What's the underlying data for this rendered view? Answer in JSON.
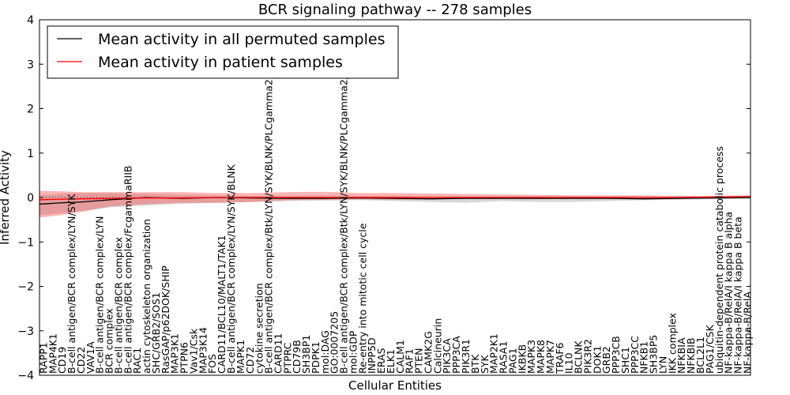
{
  "chart_data": {
    "type": "line",
    "title": "BCR signaling pathway -- 278 samples",
    "xlabel": "Cellular Entities",
    "ylabel": "Inferred Activity",
    "ylim": [
      -4,
      4
    ],
    "yticks": [
      -4,
      -3,
      -2,
      -1,
      0,
      1,
      2,
      3,
      4
    ],
    "ytick_labels": [
      "−4",
      "−3",
      "−2",
      "−1",
      "0",
      "1",
      "2",
      "3",
      "4"
    ],
    "legend": {
      "position": "top-left",
      "entries": [
        {
          "label": "Mean activity in all permuted samples",
          "color": "#000000"
        },
        {
          "label": "Mean activity in patient samples",
          "color": "#ff0000"
        }
      ]
    },
    "categories": [
      "RAPP1",
      "MAP4K1",
      "CD19",
      "B-cell antigen/BCR complex/LYN/SYK",
      "CD22",
      "VAV1A",
      "B-cell antigen/BCR complex/LYN",
      "BCR complex",
      "B-cell antigen/BCR complex",
      "B-cell antigen/BCR complex/FcgammaRIIB",
      "RAC1",
      "actin cytoskeleton organization",
      "SHC/GRB2/SOS1",
      "RasGAP/p62DOK/SHIP",
      "MAP3K1",
      "PTPN6",
      "Vav1/Csk",
      "MAP3K14",
      "FOS",
      "CARD11/BCL10/MALT1/TAK1",
      "B-cell antigen/BCR complex/LYN/SYK/BLNK",
      "MAPK1",
      "CD72",
      "cytokine secretion",
      "B-cell antigen/BCR complex/Btk/LYN/SYK/BLNK/PLCgamma2",
      "CARD11",
      "PTPRC",
      "CD79B",
      "SH3BP1",
      "PDPK1",
      "mol:DAG",
      "GO:0007205",
      "B-cell antigen/BCR complex/Btk/LYN/SYK/BLNK/PLCgamma2/BCAP",
      "mol:GDP",
      "Re-entry into mitotic cell cycle",
      "INPP5D",
      "ERAS",
      "ELK1",
      "CALM1",
      "RAF1",
      "PTEN",
      "CAMK2G",
      "Calcineurin",
      "PIK3CA",
      "PPP3CA",
      "PIK3R1",
      "BTK",
      "SYK",
      "MAP2K1",
      "RASA1",
      "PAG1",
      "IKBKB",
      "MAPK3",
      "MAPK8",
      "MAPK7",
      "TRAF6",
      "IL10",
      "BCLNK",
      "PIK3R2",
      "DOK1",
      "GRB2",
      "PPP3CB",
      "SHC1",
      "PPP3CC",
      "NFKB1",
      "SH3BP5",
      "LYN",
      "IKK complex",
      "NFKBIA",
      "NFKBIB",
      "BCL2L1",
      "PAG1/CSK",
      "ubiquitin-dependent protein catabolic process",
      "NF-kappa-B/RelA/I kappa B alpha",
      "NF-kappa-B/RelA/I kappa B beta",
      "NF-kappa-B/RelA"
    ],
    "series": [
      {
        "name": "Mean activity in all permuted samples",
        "color": "#000000",
        "x": [
          0,
          0.03,
          0.06,
          0.1,
          0.15,
          0.2,
          0.25,
          0.3,
          0.35,
          0.4,
          0.45,
          0.5,
          0.55,
          0.6,
          0.65,
          0.7,
          0.75,
          0.8,
          0.85,
          0.9,
          0.95,
          1
        ],
        "values": [
          -0.15,
          -0.12,
          -0.1,
          -0.05,
          0.0,
          -0.02,
          0.0,
          -0.01,
          -0.02,
          -0.02,
          -0.01,
          -0.02,
          -0.03,
          -0.02,
          -0.02,
          -0.02,
          -0.02,
          -0.02,
          -0.03,
          -0.02,
          -0.01,
          0.0
        ],
        "band_low": [
          -0.4,
          -0.35,
          -0.3,
          -0.22,
          -0.18,
          -0.14,
          -0.12,
          -0.1,
          -0.08,
          -0.07,
          -0.06,
          -0.08,
          -0.1,
          -0.12,
          -0.08,
          -0.1,
          -0.1,
          -0.08,
          -0.06,
          -0.05,
          -0.04,
          -0.03
        ],
        "band_high": [
          0.05,
          0.08,
          0.1,
          0.1,
          0.08,
          0.06,
          0.05,
          0.04,
          0.04,
          0.04,
          0.04,
          0.04,
          0.03,
          0.03,
          0.03,
          0.03,
          0.03,
          0.03,
          0.02,
          0.02,
          0.02,
          0.02
        ]
      },
      {
        "name": "Mean activity in patient samples",
        "color": "#ff0000",
        "x": [
          0,
          0.03,
          0.06,
          0.1,
          0.15,
          0.2,
          0.25,
          0.3,
          0.35,
          0.4,
          0.45,
          0.5,
          0.55,
          0.6,
          0.65,
          0.7,
          0.75,
          0.8,
          0.85,
          0.9,
          0.95,
          1
        ],
        "values": [
          -0.05,
          -0.04,
          -0.03,
          -0.02,
          -0.01,
          -0.01,
          0.0,
          0.0,
          0.0,
          0.0,
          0.0,
          0.0,
          0.0,
          0.0,
          0.0,
          0.0,
          0.0,
          0.0,
          0.0,
          0.0,
          0.01,
          0.02
        ],
        "band_low": [
          -0.45,
          -0.4,
          -0.32,
          -0.2,
          -0.15,
          -0.12,
          -0.12,
          -0.1,
          -0.06,
          -0.05,
          -0.04,
          -0.05,
          -0.04,
          -0.03,
          -0.03,
          -0.03,
          -0.02,
          -0.02,
          -0.02,
          -0.02,
          -0.02,
          -0.01
        ],
        "band_high": [
          0.15,
          0.14,
          0.12,
          0.12,
          0.12,
          0.12,
          0.1,
          0.1,
          0.12,
          0.13,
          0.1,
          0.1,
          0.09,
          0.08,
          0.07,
          0.06,
          0.05,
          0.05,
          0.05,
          0.04,
          0.04,
          0.05
        ]
      }
    ]
  }
}
